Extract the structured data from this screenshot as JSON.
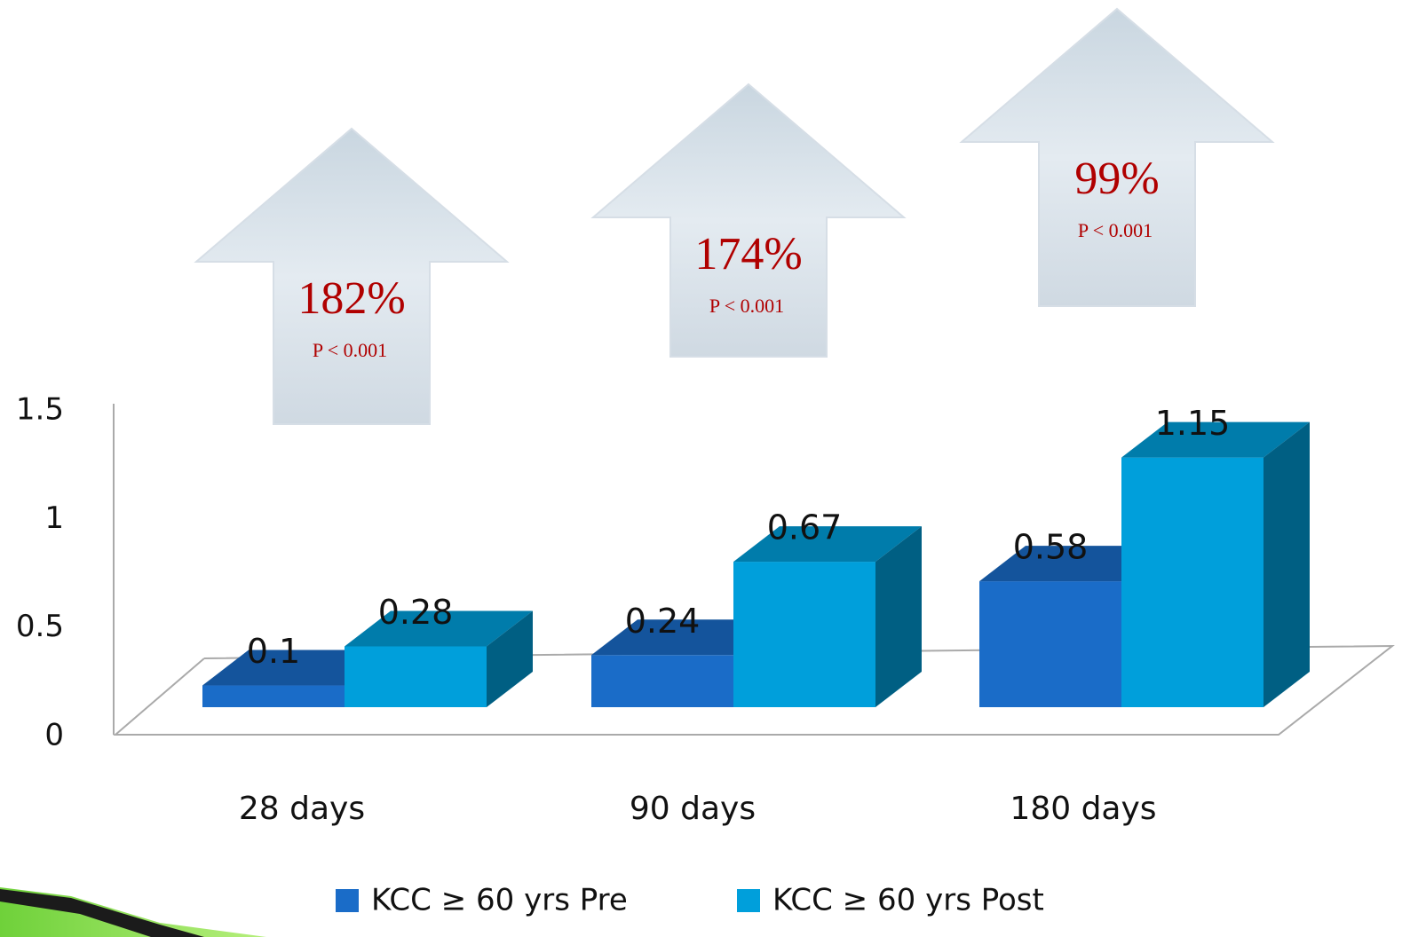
{
  "chart_data": {
    "type": "bar",
    "categories": [
      "28 days",
      "90 days",
      "180 days"
    ],
    "series": [
      {
        "name": "KCC ≥ 60 yrs Pre",
        "color": "#1a6cc8",
        "values": [
          0.1,
          0.24,
          0.58
        ]
      },
      {
        "name": "KCC ≥ 60 yrs Post",
        "color": "#009fdb",
        "values": [
          0.28,
          0.67,
          1.15
        ]
      }
    ],
    "ylim": [
      0,
      1.5
    ],
    "yticks": [
      0,
      0.5,
      1,
      1.5
    ],
    "grid": false,
    "annotations": [
      {
        "text": "182%",
        "note": "P < 0.001"
      },
      {
        "text": "174%",
        "note": "P < 0.001"
      },
      {
        "text": "99%",
        "note": "P < 0.001"
      }
    ]
  }
}
